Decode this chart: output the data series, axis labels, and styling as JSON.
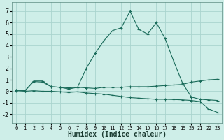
{
  "title": "",
  "xlabel": "Humidex (Indice chaleur)",
  "ylabel": "",
  "bg_color": "#ceeee8",
  "grid_color": "#aad4ce",
  "line_color": "#1a6b5a",
  "xlim": [
    -0.5,
    23.5
  ],
  "ylim": [
    -2.8,
    7.8
  ],
  "xticks": [
    0,
    1,
    2,
    3,
    4,
    5,
    6,
    7,
    8,
    9,
    10,
    11,
    12,
    13,
    14,
    15,
    16,
    17,
    18,
    19,
    20,
    21,
    22,
    23
  ],
  "yticks": [
    -2,
    -1,
    0,
    1,
    2,
    3,
    4,
    5,
    6,
    7
  ],
  "line1_x": [
    0,
    1,
    2,
    3,
    4,
    5,
    6,
    7,
    8,
    9,
    10,
    11,
    12,
    13,
    14,
    15,
    16,
    17,
    18,
    19,
    20,
    21,
    22,
    23
  ],
  "line1_y": [
    0.1,
    0.05,
    0.9,
    0.9,
    0.4,
    0.35,
    0.3,
    0.35,
    2.0,
    3.3,
    4.4,
    5.3,
    5.55,
    7.0,
    5.4,
    5.0,
    6.0,
    4.6,
    2.6,
    0.7,
    -0.5,
    -0.7,
    -0.75,
    -0.8
  ],
  "line2_x": [
    0,
    1,
    2,
    3,
    4,
    5,
    6,
    7,
    8,
    9,
    10,
    11,
    12,
    13,
    14,
    15,
    16,
    17,
    18,
    19,
    20,
    21,
    22,
    23
  ],
  "line2_y": [
    0.1,
    0.05,
    0.85,
    0.8,
    0.4,
    0.35,
    0.2,
    0.35,
    0.3,
    0.25,
    0.35,
    0.35,
    0.35,
    0.4,
    0.4,
    0.4,
    0.45,
    0.5,
    0.55,
    0.6,
    0.8,
    0.9,
    1.0,
    1.05
  ],
  "line3_x": [
    0,
    1,
    2,
    3,
    4,
    5,
    6,
    7,
    8,
    9,
    10,
    11,
    12,
    13,
    14,
    15,
    16,
    17,
    18,
    19,
    20,
    21,
    22,
    23
  ],
  "line3_y": [
    0.05,
    0.0,
    0.05,
    0.0,
    0.0,
    -0.05,
    -0.1,
    -0.05,
    -0.15,
    -0.2,
    -0.25,
    -0.35,
    -0.45,
    -0.55,
    -0.6,
    -0.65,
    -0.7,
    -0.7,
    -0.72,
    -0.75,
    -0.8,
    -0.9,
    -1.55,
    -1.85
  ]
}
